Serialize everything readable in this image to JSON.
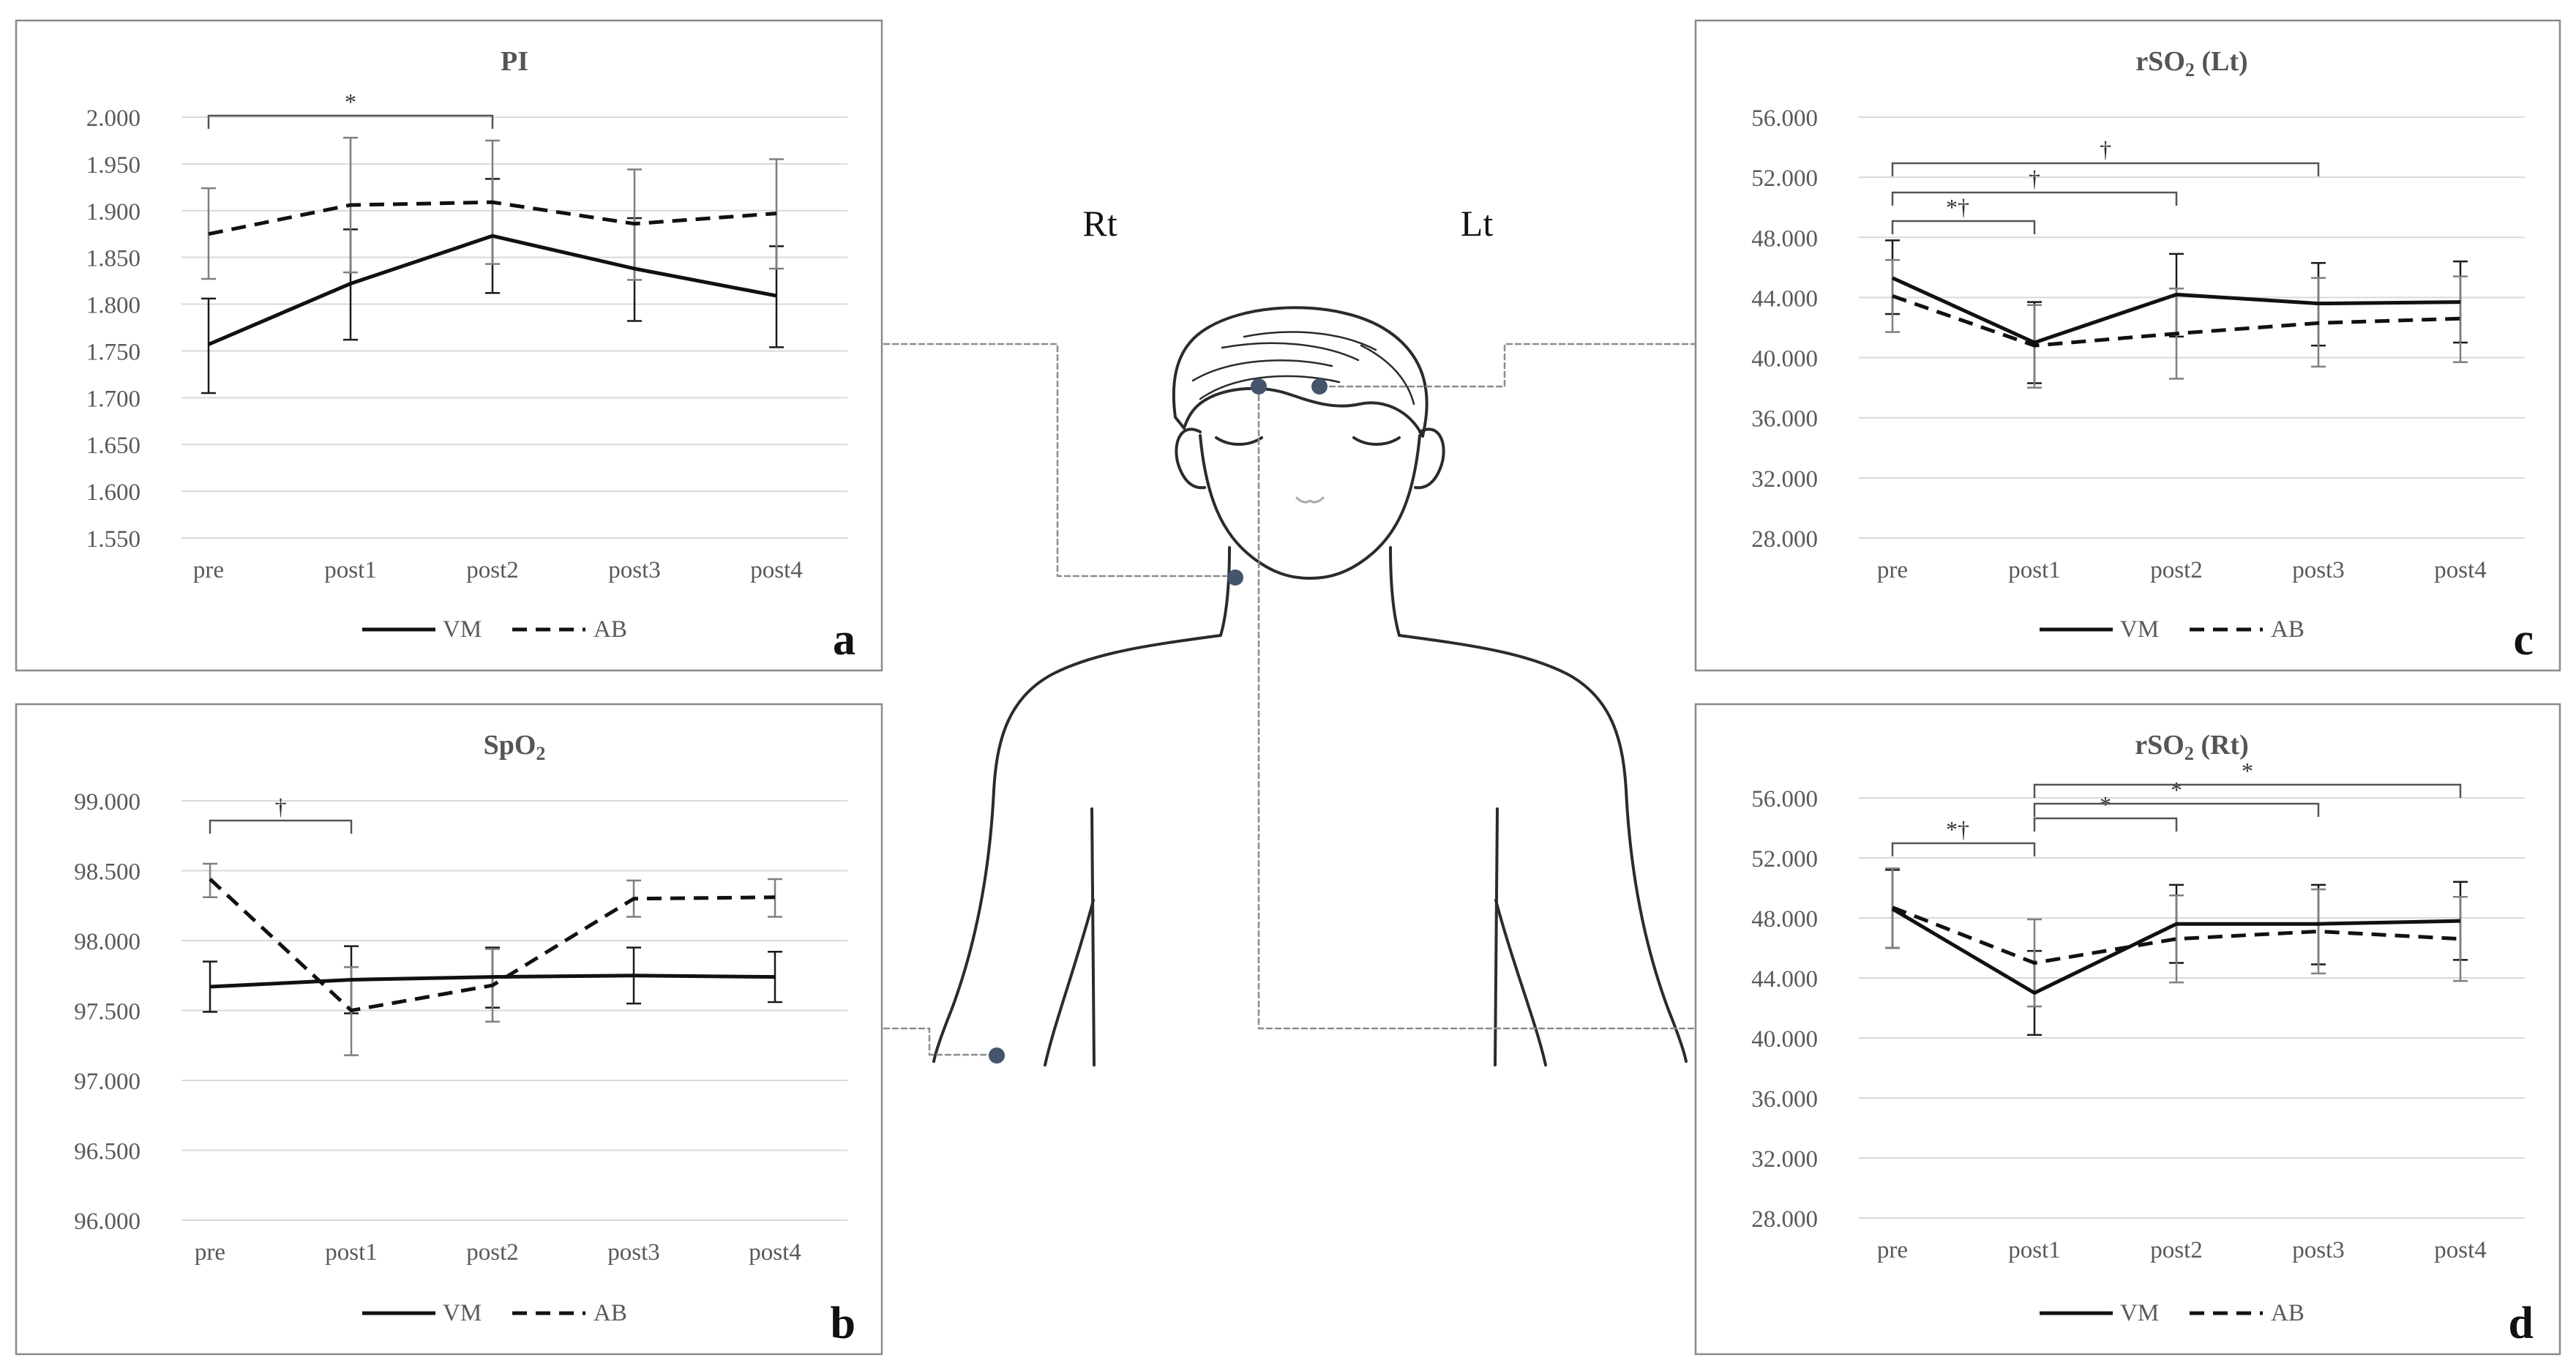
{
  "charts": [
    {
      "title": "PI",
      "subscript": "",
      "panel_label": "a",
      "type": "line",
      "categories": [
        "pre",
        "post1",
        "post2",
        "post3",
        "post4"
      ],
      "yticks": [
        "2.000",
        "1.950",
        "1.900",
        "1.850",
        "1.800",
        "1.750",
        "1.700",
        "1.650",
        "1.600",
        "1.550"
      ],
      "ylim": [
        1.55,
        2.0
      ],
      "series": [
        {
          "name": "VM",
          "style": "solid",
          "values": [
            1.757,
            1.822,
            1.873,
            1.838,
            1.809
          ],
          "err_low": [
            1.705,
            1.762,
            1.812,
            1.782,
            1.754
          ],
          "err_high": [
            1.806,
            1.88,
            1.934,
            1.892,
            1.862
          ]
        },
        {
          "name": "AB",
          "style": "dashed",
          "values": [
            1.875,
            1.906,
            1.909,
            1.886,
            1.897
          ],
          "err_low": [
            1.827,
            1.834,
            1.843,
            1.826,
            1.838
          ],
          "err_high": [
            1.924,
            1.978,
            1.975,
            1.944,
            1.955
          ]
        }
      ],
      "annotations": [
        {
          "text": "*",
          "from": 0,
          "to": 2,
          "level": 0
        }
      ],
      "legend": "bottom"
    },
    {
      "title": "SpO",
      "subscript": "2",
      "panel_label": "b",
      "type": "line",
      "categories": [
        "pre",
        "post1",
        "post2",
        "post3",
        "post4"
      ],
      "yticks": [
        "99.000",
        "98.500",
        "98.000",
        "97.500",
        "97.000",
        "96.500",
        "96.000"
      ],
      "ylim": [
        96.0,
        99.0
      ],
      "series": [
        {
          "name": "VM",
          "style": "solid",
          "values": [
            97.67,
            97.72,
            97.74,
            97.75,
            97.74
          ],
          "err_low": [
            97.49,
            97.48,
            97.52,
            97.55,
            97.56
          ],
          "err_high": [
            97.85,
            97.96,
            97.95,
            97.95,
            97.92
          ]
        },
        {
          "name": "AB",
          "style": "dashed",
          "values": [
            98.44,
            97.5,
            97.68,
            98.3,
            98.31
          ],
          "err_low": [
            98.31,
            97.18,
            97.42,
            98.17,
            98.17
          ],
          "err_high": [
            98.55,
            97.81,
            97.94,
            98.43,
            98.44
          ]
        }
      ],
      "annotations": [
        {
          "text": "†",
          "from": 0,
          "to": 1,
          "level": 0
        }
      ],
      "legend": "bottom"
    },
    {
      "title": "rSO",
      "subscript": "2",
      "title_suffix": " (Lt)",
      "panel_label": "c",
      "type": "line",
      "categories": [
        "pre",
        "post1",
        "post2",
        "post3",
        "post4"
      ],
      "yticks": [
        "56.000",
        "52.000",
        "48.000",
        "44.000",
        "40.000",
        "36.000",
        "32.000",
        "28.000"
      ],
      "ylim": [
        28.0,
        56.0
      ],
      "series": [
        {
          "name": "VM",
          "style": "solid",
          "values": [
            45.3,
            41.0,
            44.2,
            43.6,
            43.7
          ],
          "err_low": [
            42.9,
            38.3,
            41.4,
            40.8,
            41.0
          ],
          "err_high": [
            47.8,
            43.7,
            46.9,
            46.3,
            46.4
          ]
        },
        {
          "name": "AB",
          "style": "dashed",
          "values": [
            44.1,
            40.8,
            41.6,
            42.3,
            42.6
          ],
          "err_low": [
            41.7,
            38.0,
            38.6,
            39.4,
            39.7
          ],
          "err_high": [
            46.5,
            43.5,
            44.6,
            45.3,
            45.4
          ]
        }
      ],
      "annotations": [
        {
          "text": "*†",
          "from": 0,
          "to": 1,
          "level": 0
        },
        {
          "text": "†",
          "from": 0,
          "to": 2,
          "level": 1
        },
        {
          "text": "†",
          "from": 0,
          "to": 3,
          "level": 2
        }
      ],
      "legend": "bottom"
    },
    {
      "title": "rSO",
      "subscript": "2",
      "title_suffix": " (Rt)",
      "panel_label": "d",
      "type": "line",
      "categories": [
        "pre",
        "post1",
        "post2",
        "post3",
        "post4"
      ],
      "yticks": [
        "56.000",
        "52.000",
        "48.000",
        "44.000",
        "40.000",
        "36.000",
        "32.000",
        "28.000"
      ],
      "ylim": [
        28.0,
        56.0
      ],
      "series": [
        {
          "name": "VM",
          "style": "solid",
          "values": [
            48.6,
            43.0,
            47.6,
            47.6,
            47.8
          ],
          "err_low": [
            46.0,
            40.2,
            45.0,
            44.9,
            45.2
          ],
          "err_high": [
            51.2,
            45.8,
            50.2,
            50.2,
            50.4
          ]
        },
        {
          "name": "AB",
          "style": "dashed",
          "values": [
            48.7,
            45.0,
            46.6,
            47.1,
            46.6
          ],
          "err_low": [
            46.0,
            42.1,
            43.7,
            44.3,
            43.8
          ],
          "err_high": [
            51.3,
            47.9,
            49.5,
            49.9,
            49.4
          ]
        }
      ],
      "annotations": [
        {
          "text": "*†",
          "from": 0,
          "to": 1,
          "level": 0
        },
        {
          "text": "*",
          "from": 1,
          "to": 2,
          "level": 0
        },
        {
          "text": "*",
          "from": 1,
          "to": 3,
          "level": 1
        },
        {
          "text": "*",
          "from": 1,
          "to": 4,
          "level": 2
        }
      ],
      "legend": "bottom"
    }
  ],
  "diagram": {
    "left_label": "Rt",
    "right_label": "Lt",
    "line_color": "#2b2b2b",
    "sensor_color": "#44546a",
    "leader_color": "#8c8c8c"
  }
}
